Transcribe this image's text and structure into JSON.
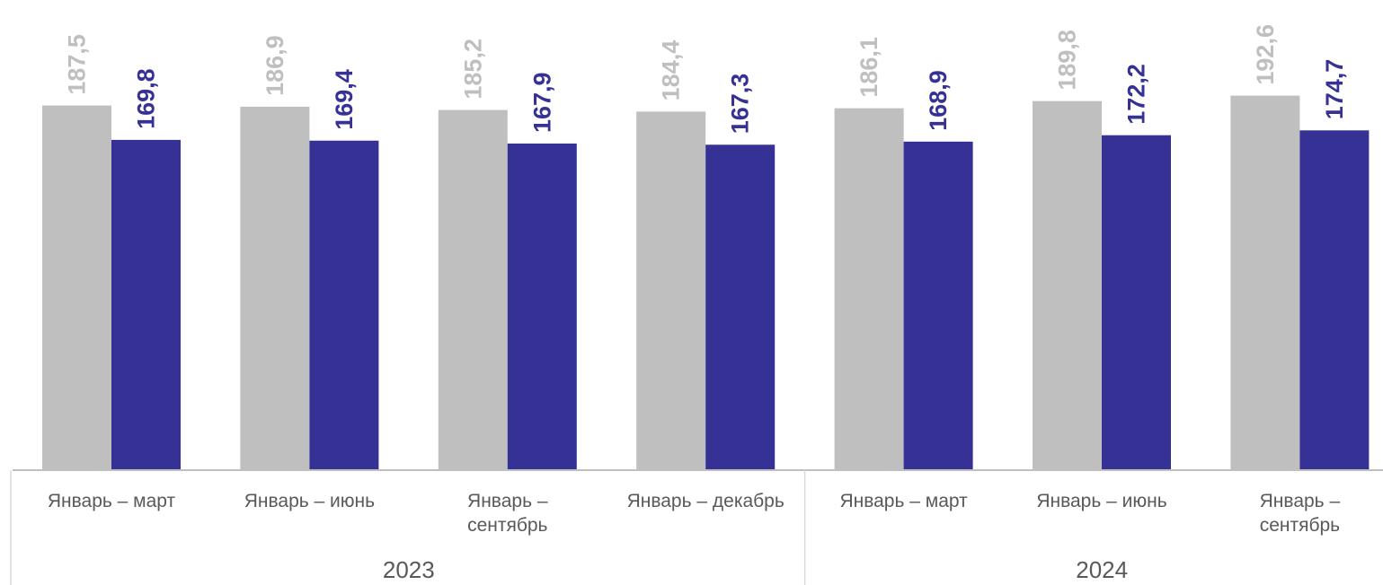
{
  "chart_data": {
    "type": "bar",
    "categories": [
      [
        "Январь – март"
      ],
      [
        "Январь – июнь"
      ],
      [
        "Январь –",
        "сентябрь"
      ],
      [
        "Январь – декабрь"
      ],
      [
        "Январь – март"
      ],
      [
        "Январь – июнь"
      ],
      [
        "Январь –",
        "сентябрь"
      ]
    ],
    "groups": [
      {
        "label": "2023",
        "categories": [
          0,
          1,
          2,
          3
        ]
      },
      {
        "label": "2024",
        "categories": [
          4,
          5,
          6
        ]
      }
    ],
    "series": [
      {
        "color": "#bfbfbf",
        "values": [
          187.5,
          186.9,
          185.2,
          184.4,
          186.1,
          189.8,
          192.6
        ]
      },
      {
        "color": "#363194",
        "values": [
          169.8,
          169.4,
          167.9,
          167.3,
          168.9,
          172.2,
          174.7
        ]
      }
    ],
    "value_labels": [
      [
        "187,5",
        "186,9",
        "185,2",
        "184,4",
        "186,1",
        "189,8",
        "192,6"
      ],
      [
        "169,8",
        "169,4",
        "167,9",
        "167,3",
        "168,9",
        "172,2",
        "174,7"
      ]
    ],
    "ylim": [
      0,
      200
    ],
    "grid": false,
    "legend": "none"
  }
}
